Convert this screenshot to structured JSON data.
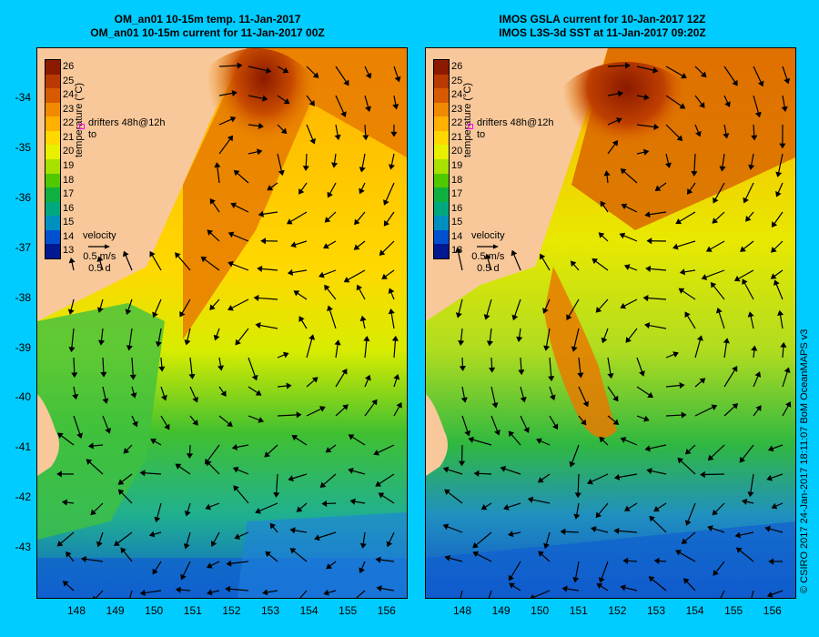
{
  "left_panel": {
    "title_line1": "OM_an01 10-15m temp. 11-Jan-2017",
    "title_line2": "OM_an01 10-15m current for 11-Jan-2017 00Z"
  },
  "right_panel": {
    "title_line1": "IMOS GSLA current for 10-Jan-2017 12Z",
    "title_line2": "IMOS L3S-3d SST at 11-Jan-2017 09:20Z"
  },
  "y_ticks": [
    "-34",
    "-35",
    "-36",
    "-37",
    "-38",
    "-39",
    "-40",
    "-41",
    "-42",
    "-43"
  ],
  "x_ticks": [
    "148",
    "149",
    "150",
    "151",
    "152",
    "153",
    "154",
    "155",
    "156"
  ],
  "colorbar": {
    "label": "temperature (°C)",
    "ticks": [
      "26",
      "25",
      "24",
      "23",
      "22",
      "21",
      "20",
      "19",
      "18",
      "17",
      "16",
      "15",
      "14",
      "13"
    ],
    "colors": [
      "#8b1a00",
      "#b83a00",
      "#d85a00",
      "#f08a00",
      "#ffb000",
      "#ffd800",
      "#e8f000",
      "#a8e000",
      "#50c800",
      "#10b040",
      "#00a880",
      "#0090c0",
      "#0050d0",
      "#001890"
    ]
  },
  "drifters": {
    "line1": "drifters 48h@12h",
    "line2": "to"
  },
  "velocity_legend": {
    "title": "velocity",
    "speed": "0.5 m/s",
    "duration": "0.5 d"
  },
  "credit": "© CSIRO 2017  24-Jan-2017 18:11:07 BoM OceanMAPS v3",
  "map_colors": {
    "land": "#f8c89a",
    "warm_core": "#a83000",
    "warm": "#e87a00",
    "mild": "#ffc800",
    "cool": "#b8e000",
    "green": "#30c030",
    "teal": "#20b090",
    "cold": "#1060d0"
  }
}
